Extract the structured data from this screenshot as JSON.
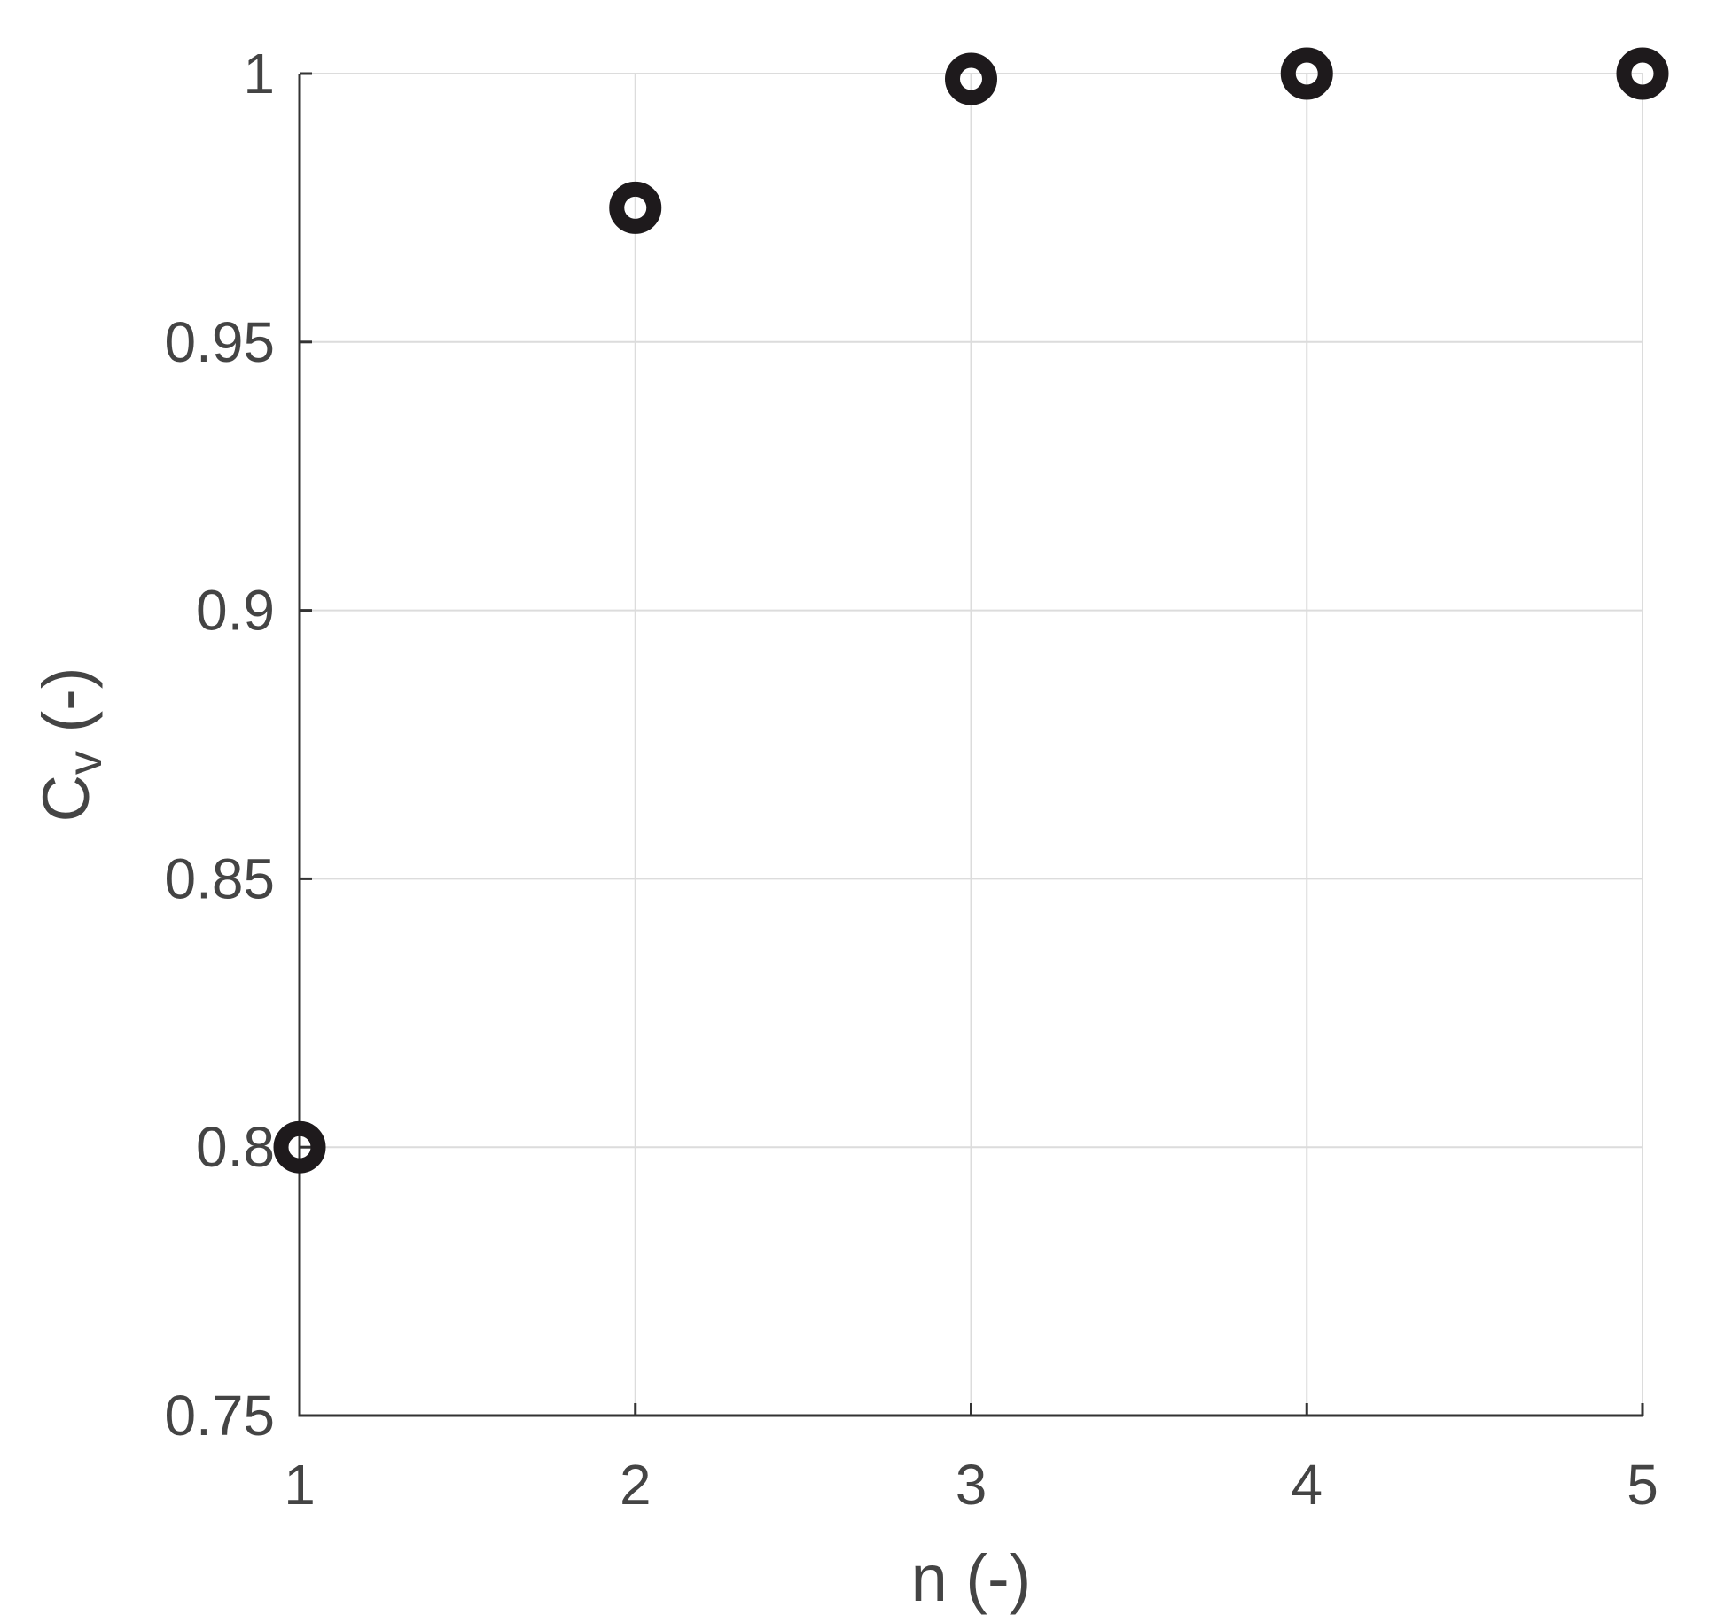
{
  "chart_data": {
    "type": "scatter",
    "title": "",
    "xlabel": "n (-)",
    "ylabel_main": "C",
    "ylabel_sub": "v",
    "ylabel_tail": " (-)",
    "xlim": [
      1,
      5
    ],
    "ylim": [
      0.75,
      1
    ],
    "x_ticks": [
      1,
      2,
      3,
      4,
      5
    ],
    "x_tick_labels": [
      "1",
      "2",
      "3",
      "4",
      "5"
    ],
    "y_ticks": [
      0.75,
      0.8,
      0.85,
      0.9,
      0.95,
      1
    ],
    "y_tick_labels": [
      "0.75",
      "0.8",
      "0.85",
      "0.9",
      "0.95",
      "1"
    ],
    "grid": true,
    "marker_color": "#1e1a1c",
    "series": [
      {
        "marker": "circle-open",
        "x": [
          1,
          2,
          3,
          4,
          5
        ],
        "y": [
          0.8,
          0.975,
          0.999,
          1.0,
          1.0
        ]
      }
    ]
  }
}
